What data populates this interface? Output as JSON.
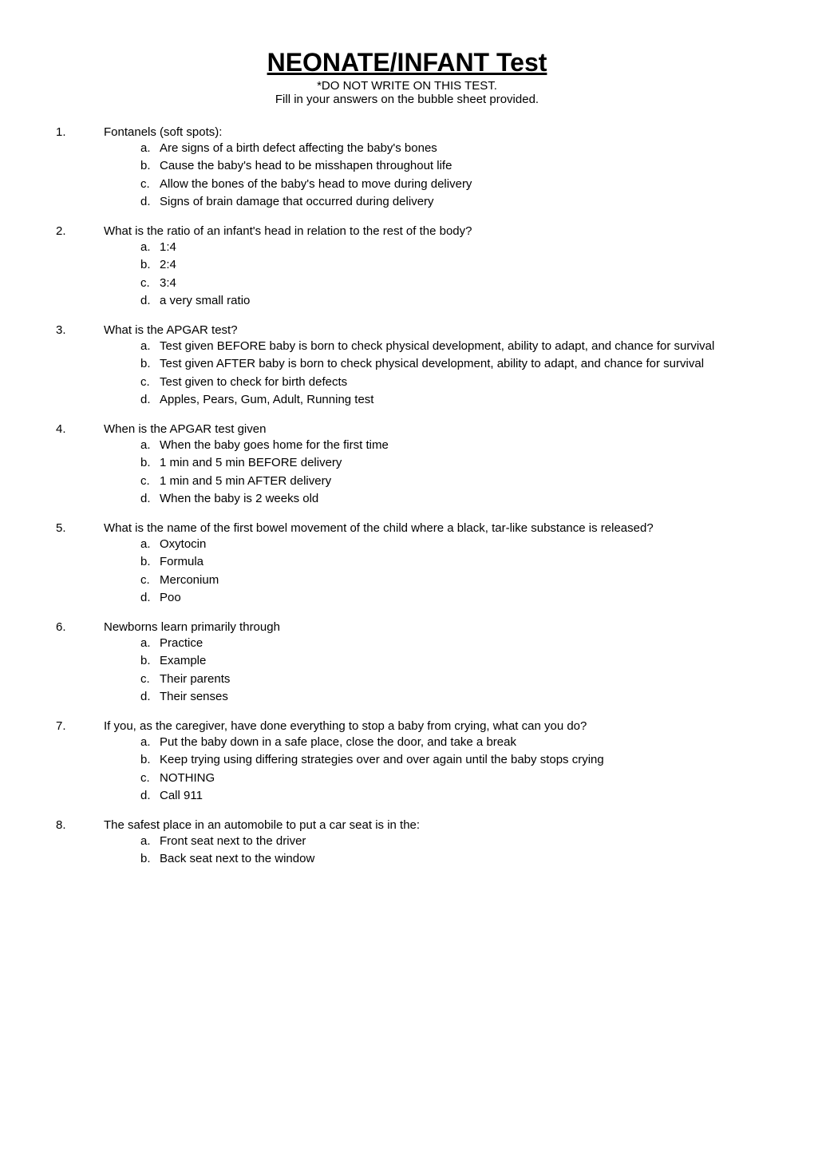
{
  "title": "NEONATE/INFANT Test",
  "subtitle": "*DO NOT WRITE ON THIS TEST.",
  "instruction": "Fill in your answers on the bubble sheet provided.",
  "background_color": "#ffffff",
  "text_color": "#000000",
  "title_fontsize": 32,
  "body_fontsize": 15,
  "font_family": "Arial, sans-serif",
  "questions": [
    {
      "number": "1.",
      "text": "Fontanels (soft spots):",
      "options": [
        {
          "letter": "a.",
          "text": "Are signs of a birth defect affecting the baby's bones"
        },
        {
          "letter": "b.",
          "text": "Cause the baby's head to be misshapen throughout life"
        },
        {
          "letter": "c.",
          "text": "Allow the bones of the baby's head to move during delivery"
        },
        {
          "letter": "d.",
          "text": "Signs of brain damage that occurred during delivery"
        }
      ]
    },
    {
      "number": "2.",
      "text": "What is the ratio of an infant's head in relation to the rest of the body?",
      "options": [
        {
          "letter": "a.",
          "text": "1:4"
        },
        {
          "letter": "b.",
          "text": "2:4"
        },
        {
          "letter": "c.",
          "text": "3:4"
        },
        {
          "letter": "d.",
          "text": "a very small ratio"
        }
      ]
    },
    {
      "number": "3.",
      "text": "What is the APGAR test?",
      "options": [
        {
          "letter": "a.",
          "text": "Test given BEFORE baby is born to check physical development, ability to adapt, and chance for survival"
        },
        {
          "letter": "b.",
          "text": "Test given AFTER baby is born to check physical development, ability to adapt, and chance for survival"
        },
        {
          "letter": "c.",
          "text": "Test given to check for birth defects"
        },
        {
          "letter": "d.",
          "text": "Apples, Pears, Gum, Adult, Running test"
        }
      ]
    },
    {
      "number": "4.",
      "text": "When is the APGAR test given",
      "options": [
        {
          "letter": "a.",
          "text": "When the baby goes home for the first time"
        },
        {
          "letter": "b.",
          "text": "1 min and 5 min BEFORE delivery"
        },
        {
          "letter": "c.",
          "text": "1 min and 5 min AFTER delivery"
        },
        {
          "letter": "d.",
          "text": "When the baby is 2 weeks old"
        }
      ]
    },
    {
      "number": "5.",
      "text": "What is the name of the first bowel movement of the child where a black, tar-like substance is released?",
      "options": [
        {
          "letter": "a.",
          "text": "Oxytocin"
        },
        {
          "letter": "b.",
          "text": "Formula"
        },
        {
          "letter": "c.",
          "text": "Merconium"
        },
        {
          "letter": "d.",
          "text": "Poo"
        }
      ]
    },
    {
      "number": "6.",
      "text": "Newborns learn primarily through",
      "options": [
        {
          "letter": "a.",
          "text": "Practice"
        },
        {
          "letter": "b.",
          "text": "Example"
        },
        {
          "letter": "c.",
          "text": "Their parents"
        },
        {
          "letter": "d.",
          "text": "Their senses"
        }
      ]
    },
    {
      "number": "7.",
      "text": "If you, as the caregiver, have done everything to stop a baby from crying, what can you do?",
      "options": [
        {
          "letter": "a.",
          "text": "Put the baby down in a safe place, close the door, and take a break"
        },
        {
          "letter": "b.",
          "text": "Keep trying using differing strategies over and over again until the baby stops crying"
        },
        {
          "letter": "c.",
          "text": "NOTHING"
        },
        {
          "letter": "d.",
          "text": "Call 911"
        }
      ]
    },
    {
      "number": "8.",
      "text": "The safest place in an automobile to put a car seat is in the:",
      "options": [
        {
          "letter": "a.",
          "text": "Front seat next to the driver"
        },
        {
          "letter": "b.",
          "text": "Back seat next to the window"
        }
      ]
    }
  ]
}
